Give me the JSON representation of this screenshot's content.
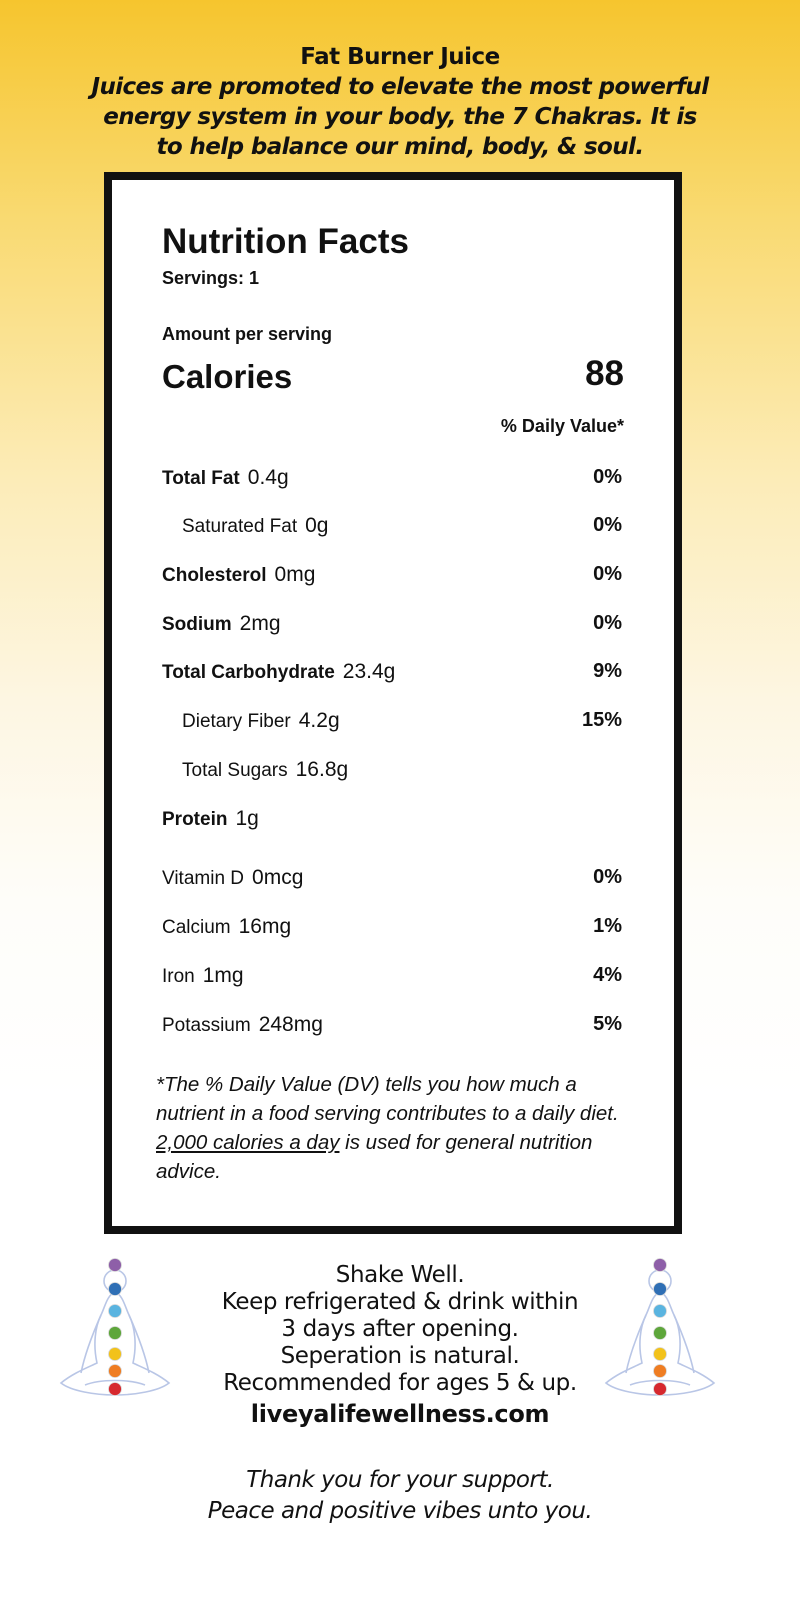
{
  "header": {
    "title": "Fat Burner Juice",
    "subtitle": "Juices are promoted to elevate the most powerful energy system in your body, the 7 Chakras. It is to help balance our mind, body, & soul."
  },
  "label": {
    "title": "Nutrition Facts",
    "servings": "Servings: 1",
    "amount_per_serving": "Amount per serving",
    "calories_label": "Calories",
    "calories_value": "88",
    "daily_value_header": "% Daily Value*",
    "nutrients": [
      {
        "name": "Total Fat",
        "amount": "0.4g",
        "dv": "0%"
      },
      {
        "name": "Saturated Fat",
        "amount": "0g",
        "dv": "0%"
      },
      {
        "name": "Cholesterol",
        "amount": "0mg",
        "dv": "0%"
      },
      {
        "name": "Sodium",
        "amount": "2mg",
        "dv": "0%"
      },
      {
        "name": "Total Carbohydrate",
        "amount": "23.4g",
        "dv": "9%"
      },
      {
        "name": "Dietary Fiber",
        "amount": "4.2g",
        "dv": "15%"
      },
      {
        "name": "Total Sugars",
        "amount": "16.8g",
        "dv": ""
      },
      {
        "name": "Protein",
        "amount": "1g",
        "dv": ""
      },
      {
        "name": "Vitamin D",
        "amount": "0mcg",
        "dv": "0%"
      },
      {
        "name": "Calcium",
        "amount": "16mg",
        "dv": "1%"
      },
      {
        "name": "Iron",
        "amount": "1mg",
        "dv": "4%"
      },
      {
        "name": "Potassium",
        "amount": "248mg",
        "dv": "5%"
      }
    ],
    "footnote_part1": "*The % Daily Value (DV) tells you how much a nutrient in a food serving contributes to a daily diet. ",
    "footnote_link": "2,000 calories a day",
    "footnote_part2": " is used for general nutrition advice."
  },
  "care": {
    "lines": [
      "Shake Well.",
      "Keep refrigerated & drink within",
      "3 days after opening.",
      "Seperation is natural.",
      "Recommended for ages 5 & up."
    ],
    "website": "liveyalifewellness.com"
  },
  "thanks": {
    "line1": "Thank you for your support.",
    "line2": "Peace and positive vibes unto you."
  },
  "chakra_colors": [
    "#8e5fa8",
    "#2f6fb5",
    "#5ab4e0",
    "#5ea63b",
    "#f2c21b",
    "#ef7d22",
    "#d6282e"
  ],
  "icons": [
    "meditation-figure-icon",
    "chakra-dot-icon"
  ]
}
